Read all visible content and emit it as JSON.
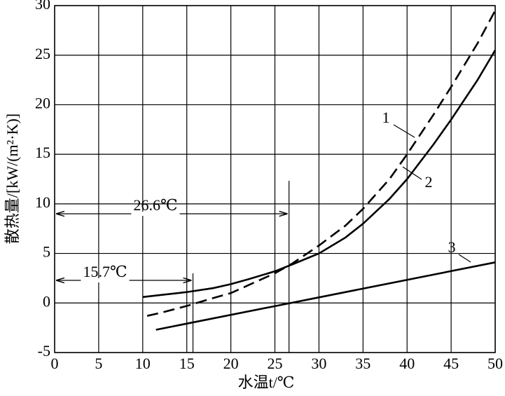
{
  "chart_data": {
    "type": "line",
    "xlabel": "水温t/℃",
    "ylabel": "散热量/[kW/(m²·K)]",
    "xlim": [
      0,
      50
    ],
    "ylim": [
      -5,
      30
    ],
    "xticks": [
      0,
      5,
      10,
      15,
      20,
      25,
      30,
      35,
      40,
      45,
      50
    ],
    "yticks": [
      -5,
      0,
      5,
      10,
      15,
      20,
      25,
      30
    ],
    "grid": true,
    "series": [
      {
        "name": "1",
        "color": "#000000",
        "dash": true,
        "x": [
          10.5,
          12,
          15,
          18,
          20,
          22,
          25,
          27,
          30,
          33,
          35,
          38,
          40,
          43,
          45,
          48,
          50
        ],
        "values": [
          -1.3,
          -1.0,
          -0.3,
          0.5,
          1.0,
          1.8,
          3.0,
          4.0,
          5.8,
          7.8,
          9.5,
          12.5,
          15.0,
          19.0,
          21.8,
          26.2,
          29.5
        ]
      },
      {
        "name": "2",
        "color": "#000000",
        "dash": false,
        "x": [
          10,
          12,
          15,
          18,
          20,
          22,
          25,
          27,
          30,
          33,
          35,
          38,
          40,
          43,
          45,
          48,
          50
        ],
        "values": [
          0.6,
          0.8,
          1.1,
          1.5,
          1.9,
          2.4,
          3.2,
          3.9,
          5.0,
          6.6,
          8.0,
          10.5,
          12.5,
          16.0,
          18.5,
          22.5,
          25.5
        ]
      },
      {
        "name": "3",
        "color": "#000000",
        "dash": false,
        "x": [
          11.5,
          50
        ],
        "values": [
          -2.7,
          4.1
        ]
      }
    ],
    "annotations": [
      {
        "text": "26.6℃",
        "x": 26.6
      },
      {
        "text": "15.7℃",
        "x": 15.7
      }
    ]
  }
}
